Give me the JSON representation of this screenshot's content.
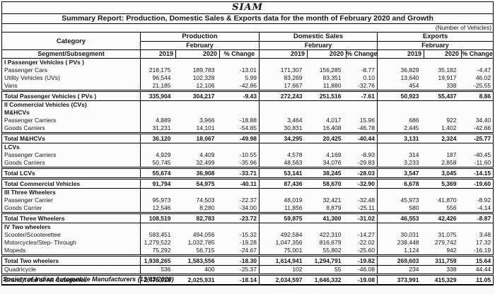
{
  "title": "SIAM",
  "subtitle": "Summary Report: Production, Domestic Sales & Exports data for the month of February 2020  and Growth",
  "unit_note": "(Number of Vehicles)",
  "header": {
    "category": "Category",
    "segment": "Segment/Subsegment",
    "groups": [
      {
        "label": "Production",
        "period": "February"
      },
      {
        "label": "Domestic Sales",
        "period": "February"
      },
      {
        "label": "Exports",
        "period": "February"
      }
    ],
    "columns": [
      "2019",
      "2020",
      "% Change"
    ]
  },
  "rows": [
    {
      "label": "I Passenger Vehicles ( PVs )",
      "style": "section",
      "values": [
        "",
        "",
        "",
        "",
        "",
        "",
        "",
        "",
        ""
      ]
    },
    {
      "label": "Passenger Cars",
      "style": "data",
      "values": [
        "218,175",
        "189,783",
        "-13.01",
        "171,307",
        "156,285",
        "-8.77",
        "36,829",
        "35,182",
        "-4.47"
      ]
    },
    {
      "label": "Utility Vehicles (UVs)",
      "style": "data",
      "values": [
        "96,544",
        "102,328",
        "5.99",
        "83,269",
        "83,351",
        "0.10",
        "13,640",
        "19,917",
        "46.02"
      ]
    },
    {
      "label": "Vans",
      "style": "data",
      "values": [
        "21,185",
        "12,106",
        "-42.86",
        "17,667",
        "11,880",
        "-32.76",
        "454",
        "338",
        "-25.55"
      ]
    },
    {
      "label": "Total Passenger Vehicles ( PVs )",
      "style": "total",
      "values": [
        "335,904",
        "304,217",
        "-9.43",
        "272,243",
        "251,516",
        "-7.61",
        "50,923",
        "55,437",
        "8.86"
      ]
    },
    {
      "label": "II Commercial Vehicles (CVs)",
      "style": "section",
      "values": [
        "",
        "",
        "",
        "",
        "",
        "",
        "",
        "",
        ""
      ]
    },
    {
      "label": "M&HCVs",
      "style": "section",
      "values": [
        "",
        "",
        "",
        "",
        "",
        "",
        "",
        "",
        ""
      ]
    },
    {
      "label": "Passenger Carriers",
      "style": "data",
      "values": [
        "4,889",
        "3,966",
        "-18.88",
        "3,464",
        "4,017",
        "15.96",
        "686",
        "922",
        "34.40"
      ]
    },
    {
      "label": "Goods Carriers",
      "style": "data",
      "values": [
        "31,231",
        "14,101",
        "-54.85",
        "30,831",
        "16,408",
        "-46.78",
        "2,445",
        "1,402",
        "-42.66"
      ]
    },
    {
      "label": "Total M&HCVs",
      "style": "total",
      "values": [
        "36,120",
        "18,067",
        "-49.98",
        "34,295",
        "20,425",
        "-40.44",
        "3,131",
        "2,324",
        "-25.77"
      ]
    },
    {
      "label": "LCVs",
      "style": "section",
      "values": [
        "",
        "",
        "",
        "",
        "",
        "",
        "",
        "",
        ""
      ]
    },
    {
      "label": "Passenger Carriers",
      "style": "data",
      "values": [
        "4,929",
        "4,409",
        "-10.55",
        "4,578",
        "4,169",
        "-8.93",
        "314",
        "187",
        "-40.45"
      ]
    },
    {
      "label": "Goods Carriers",
      "style": "data",
      "values": [
        "50,745",
        "32,499",
        "-35.96",
        "48,563",
        "34,076",
        "-29.83",
        "3,233",
        "2,858",
        "-11.60"
      ]
    },
    {
      "label": "Total LCVs",
      "style": "total",
      "values": [
        "55,674",
        "36,908",
        "-33.71",
        "53,141",
        "38,245",
        "-28.03",
        "3,547",
        "3,045",
        "-14.15"
      ]
    },
    {
      "label": "Total  Commercial Vehicles",
      "style": "total",
      "values": [
        "91,794",
        "54,975",
        "-40.11",
        "87,436",
        "58,670",
        "-32.90",
        "6,678",
        "5,369",
        "-19.60"
      ]
    },
    {
      "label": "III Three Wheelers",
      "style": "section",
      "values": [
        "",
        "",
        "",
        "",
        "",
        "",
        "",
        "",
        ""
      ]
    },
    {
      "label": "Passenger Carrier",
      "style": "data",
      "values": [
        "95,973",
        "74,503",
        "-22.37",
        "48,019",
        "32,421",
        "-32.48",
        "45,973",
        "41,870",
        "-8.92"
      ]
    },
    {
      "label": "Goods Carrier",
      "style": "data",
      "values": [
        "12,546",
        "8,280",
        "-34.00",
        "11,856",
        "8,879",
        "-25.11",
        "580",
        "556",
        "-4.14"
      ]
    },
    {
      "label": "Total Three Wheelers",
      "style": "total",
      "values": [
        "108,519",
        "82,783",
        "-23.72",
        "59,875",
        "41,300",
        "-31.02",
        "46,553",
        "42,426",
        "-8.87"
      ]
    },
    {
      "label": "IV Two wheelers",
      "style": "section",
      "values": [
        "",
        "",
        "",
        "",
        "",
        "",
        "",
        "",
        ""
      ]
    },
    {
      "label": "Scooter/Scooterettee",
      "style": "data",
      "values": [
        "583,451",
        "494,056",
        "-15.32",
        "492,584",
        "422,310",
        "-14.27",
        "30,031",
        "31,075",
        "3.48"
      ]
    },
    {
      "label": "Motorcycles/Step- Through",
      "style": "data",
      "values": [
        "1,279,522",
        "1,032,785",
        "-19.28",
        "1,047,356",
        "816,679",
        "-22.02",
        "238,448",
        "279,742",
        "17.32"
      ]
    },
    {
      "label": "Mopeds",
      "style": "data",
      "values": [
        "75,292",
        "56,715",
        "-24.67",
        "75,001",
        "55,802",
        "-25.60",
        "1,124",
        "942",
        "-16.19"
      ]
    },
    {
      "label": "Total Two wheelers",
      "style": "total",
      "values": [
        "1,938,265",
        "1,583,556",
        "-18.30",
        "1,614,941",
        "1,294,791",
        "-19.82",
        "269,603",
        "311,759",
        "15.64"
      ]
    },
    {
      "label": "Quadricycle",
      "style": "data",
      "values": [
        "536",
        "400",
        "-25.37",
        "102",
        "55",
        "-46.08",
        "234",
        "338",
        "44.44"
      ]
    },
    {
      "label": "Grand Total of All Categories",
      "style": "total",
      "values": [
        "2,475,018",
        "2,025,931",
        "-18.14",
        "2,034,597",
        "1,646,332",
        "-19.08",
        "373,991",
        "415,329",
        "11.05"
      ]
    }
  ],
  "footer": "Society of Indian Automobile Manufacturers (13/03/2020)",
  "colors": {
    "text": "#151515",
    "border": "#000000",
    "background": "#faf9f7"
  }
}
